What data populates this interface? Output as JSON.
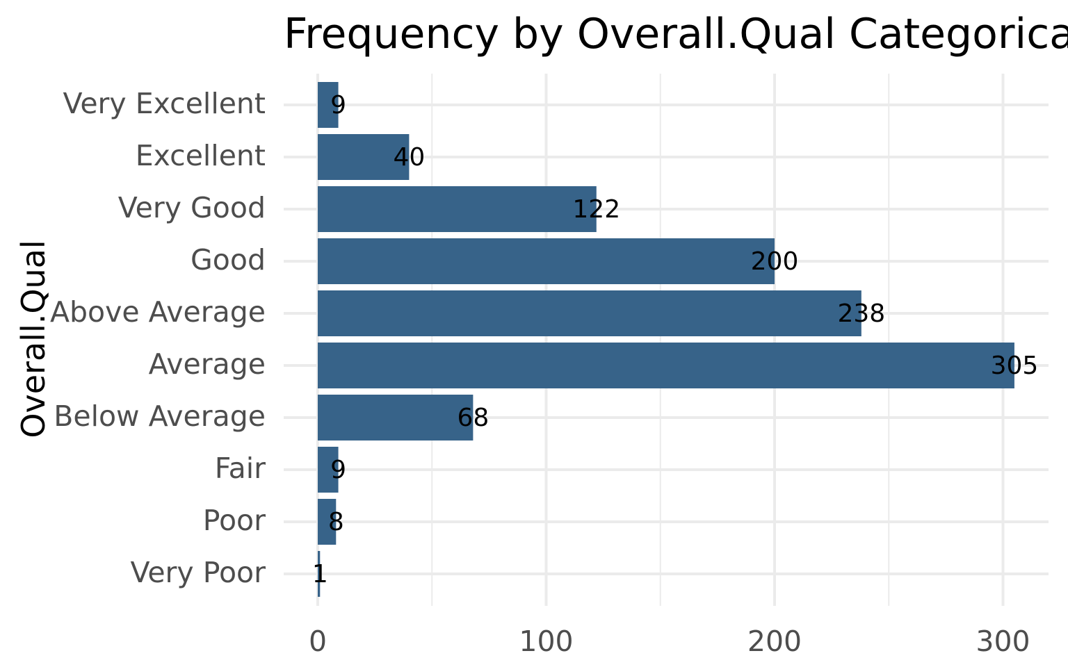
{
  "chart_data": {
    "type": "bar",
    "orientation": "horizontal",
    "title": "Frequency by Overall.Qual Categorical",
    "xlabel": "",
    "ylabel": "Overall.Qual",
    "categories": [
      "Very Excellent",
      "Excellent",
      "Very Good",
      "Good",
      "Above Average",
      "Average",
      "Below Average",
      "Fair",
      "Poor",
      "Very Poor"
    ],
    "values": [
      9,
      40,
      122,
      200,
      238,
      305,
      68,
      9,
      8,
      1
    ],
    "data_labels": [
      "9",
      "40",
      "122",
      "200",
      "238",
      "305",
      "68",
      "9",
      "8",
      "1"
    ],
    "xlim": [
      0,
      320
    ],
    "x_ticks": [
      0,
      100,
      200,
      300
    ],
    "x_tick_labels": [
      "0",
      "100",
      "200",
      "300"
    ],
    "grid": true,
    "legend": "none",
    "bar_color": "#376389",
    "grid_color": "#ebebeb"
  }
}
